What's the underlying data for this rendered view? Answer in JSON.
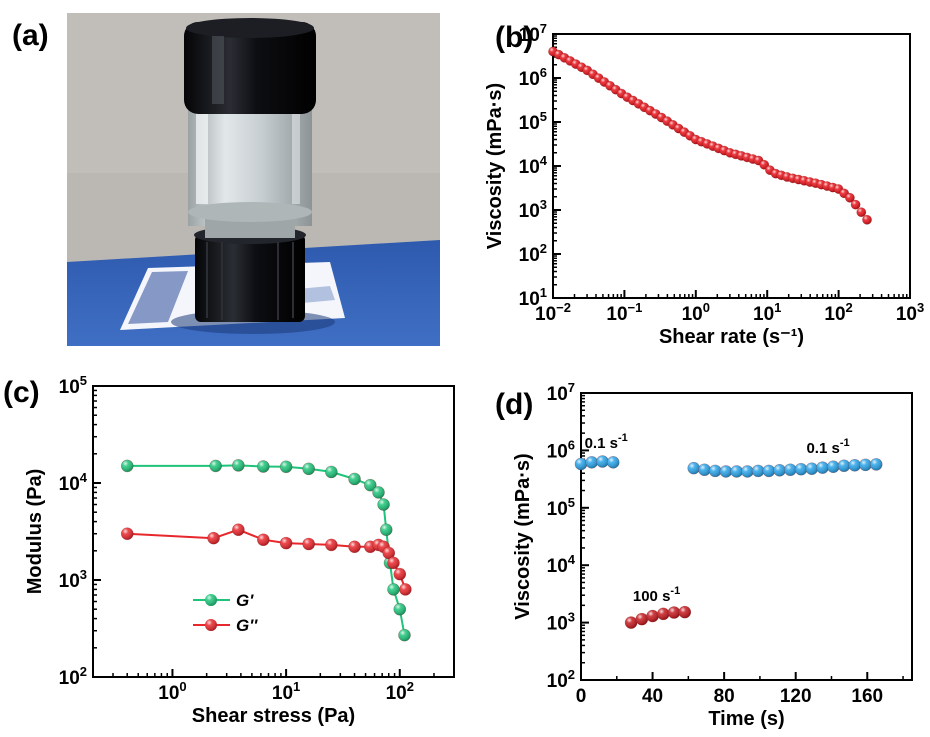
{
  "panels": {
    "a": {
      "letter": "(a)"
    },
    "b": {
      "letter": "(b)"
    },
    "c": {
      "letter": "(c)"
    },
    "d": {
      "letter": "(d)"
    }
  },
  "photo": {
    "colors": {
      "background": "#b9b6b2",
      "table": "#3a64b6",
      "cap": "#0d0d12",
      "glass": "#c9d0d2"
    }
  },
  "chart_data": [
    {
      "id": "b",
      "type": "scatter",
      "title": "",
      "xlabel": "Shear rate (s⁻¹)",
      "ylabel": "Viscosity (mPa·s)",
      "x_scale": "log",
      "y_scale": "log",
      "xlim": [
        0.01,
        1000
      ],
      "ylim": [
        10,
        10000000
      ],
      "x_ticks": [
        {
          "v": 0.01,
          "m": "10",
          "e": "−2"
        },
        {
          "v": 0.1,
          "m": "10",
          "e": "−1"
        },
        {
          "v": 1,
          "m": "10",
          "e": "0"
        },
        {
          "v": 10,
          "m": "10",
          "e": "1"
        },
        {
          "v": 100,
          "m": "10",
          "e": "2"
        },
        {
          "v": 1000,
          "m": "10",
          "e": "3"
        }
      ],
      "y_ticks": [
        {
          "v": 10,
          "m": "10",
          "e": "1"
        },
        {
          "v": 100,
          "m": "10",
          "e": "2"
        },
        {
          "v": 1000,
          "m": "10",
          "e": "3"
        },
        {
          "v": 10000,
          "m": "10",
          "e": "4"
        },
        {
          "v": 100000,
          "m": "10",
          "e": "5"
        },
        {
          "v": 1000000,
          "m": "10",
          "e": "6"
        },
        {
          "v": 10000000,
          "m": "10",
          "e": "7"
        }
      ],
      "series": [
        {
          "color": "#e8141b",
          "connect": false,
          "anchors": [
            [
              0.01,
              4000000
            ],
            [
              0.03,
              1500000
            ],
            [
              0.1,
              400000
            ],
            [
              0.3,
              140000
            ],
            [
              1,
              40000
            ],
            [
              3,
              20000
            ],
            [
              8,
              13000
            ],
            [
              12,
              7000
            ],
            [
              20,
              5500
            ],
            [
              50,
              4000
            ],
            [
              100,
              3000
            ],
            [
              150,
              1800
            ],
            [
              250,
              600
            ]
          ],
          "npoints": 56
        }
      ]
    },
    {
      "id": "c",
      "type": "line",
      "title": "",
      "xlabel": "Shear stress (Pa)",
      "ylabel": "Modulus (Pa)",
      "x_scale": "log",
      "y_scale": "log",
      "xlim": [
        0.2,
        300
      ],
      "ylim": [
        100,
        100000
      ],
      "x_ticks": [
        {
          "v": 1,
          "m": "10",
          "e": "0"
        },
        {
          "v": 10,
          "m": "10",
          "e": "1"
        },
        {
          "v": 100,
          "m": "10",
          "e": "2"
        }
      ],
      "y_ticks": [
        {
          "v": 100,
          "m": "10",
          "e": "2"
        },
        {
          "v": 1000,
          "m": "10",
          "e": "3"
        },
        {
          "v": 10000,
          "m": "10",
          "e": "4"
        },
        {
          "v": 100000,
          "m": "10",
          "e": "5"
        }
      ],
      "legend": "center-left",
      "series": [
        {
          "name": "G'",
          "color": "#1fc47a",
          "connect": true,
          "points": [
            [
              0.4,
              15000
            ],
            [
              2.4,
              15000
            ],
            [
              3.8,
              15200
            ],
            [
              6.3,
              14800
            ],
            [
              10,
              14700
            ],
            [
              15.8,
              14000
            ],
            [
              25,
              13000
            ],
            [
              40,
              11000
            ],
            [
              55,
              9500
            ],
            [
              65,
              8000
            ],
            [
              72,
              6000
            ],
            [
              76,
              3300
            ],
            [
              82,
              1500
            ],
            [
              88,
              800
            ],
            [
              100,
              500
            ],
            [
              110,
              270
            ]
          ]
        },
        {
          "name": "G''",
          "color": "#e8272c",
          "connect": true,
          "points": [
            [
              0.4,
              3000
            ],
            [
              2.3,
              2700
            ],
            [
              3.8,
              3300
            ],
            [
              6.3,
              2600
            ],
            [
              10,
              2400
            ],
            [
              15.8,
              2350
            ],
            [
              25,
              2300
            ],
            [
              40,
              2200
            ],
            [
              55,
              2200
            ],
            [
              65,
              2300
            ],
            [
              72,
              2200
            ],
            [
              80,
              1900
            ],
            [
              88,
              1500
            ],
            [
              100,
              1150
            ],
            [
              112,
              800
            ]
          ]
        }
      ]
    },
    {
      "id": "d",
      "type": "scatter",
      "title": "",
      "xlabel": "Time (s)",
      "ylabel": "Viscosity (mPa·s)",
      "x_scale": "linear",
      "y_scale": "log",
      "xlim": [
        0,
        185
      ],
      "ylim": [
        100,
        10000000
      ],
      "x_ticks": [
        {
          "v": 0,
          "m": "0"
        },
        {
          "v": 40,
          "m": "40"
        },
        {
          "v": 80,
          "m": "80"
        },
        {
          "v": 120,
          "m": "120"
        },
        {
          "v": 160,
          "m": "160"
        }
      ],
      "y_ticks": [
        {
          "v": 100,
          "m": "10",
          "e": "2"
        },
        {
          "v": 1000,
          "m": "10",
          "e": "3"
        },
        {
          "v": 10000,
          "m": "10",
          "e": "4"
        },
        {
          "v": 100000,
          "m": "10",
          "e": "5"
        },
        {
          "v": 1000000,
          "m": "10",
          "e": "6"
        },
        {
          "v": 10000000,
          "m": "10",
          "e": "7"
        }
      ],
      "series": [
        {
          "color": "#2aa3e8",
          "connect": false,
          "points": [
            [
              0,
              580000
            ],
            [
              6,
              620000
            ],
            [
              12,
              640000
            ],
            [
              18,
              620000
            ]
          ]
        },
        {
          "color": "#c41a1f",
          "connect": false,
          "points": [
            [
              28,
              1000
            ],
            [
              34,
              1150
            ],
            [
              40,
              1300
            ],
            [
              46,
              1420
            ],
            [
              52,
              1500
            ],
            [
              58,
              1520
            ]
          ]
        },
        {
          "color": "#2aa3e8",
          "connect": false,
          "points": [
            [
              63,
              490000
            ],
            [
              69,
              460000
            ],
            [
              75,
              440000
            ],
            [
              81,
              430000
            ],
            [
              87,
              430000
            ],
            [
              93,
              430000
            ],
            [
              99,
              440000
            ],
            [
              105,
              440000
            ],
            [
              111,
              450000
            ],
            [
              117,
              460000
            ],
            [
              123,
              470000
            ],
            [
              129,
              480000
            ],
            [
              135,
              500000
            ],
            [
              141,
              520000
            ],
            [
              147,
              540000
            ],
            [
              153,
              550000
            ],
            [
              159,
              560000
            ],
            [
              165,
              570000
            ]
          ]
        }
      ],
      "annotations": [
        {
          "text": "0.1 s",
          "sup": "-1",
          "at": [
            2,
            1100000
          ]
        },
        {
          "text": "100 s",
          "sup": "-1",
          "at": [
            29,
            2400
          ]
        },
        {
          "text": "0.1 s",
          "sup": "-1",
          "at": [
            126,
            900000
          ]
        }
      ]
    }
  ]
}
